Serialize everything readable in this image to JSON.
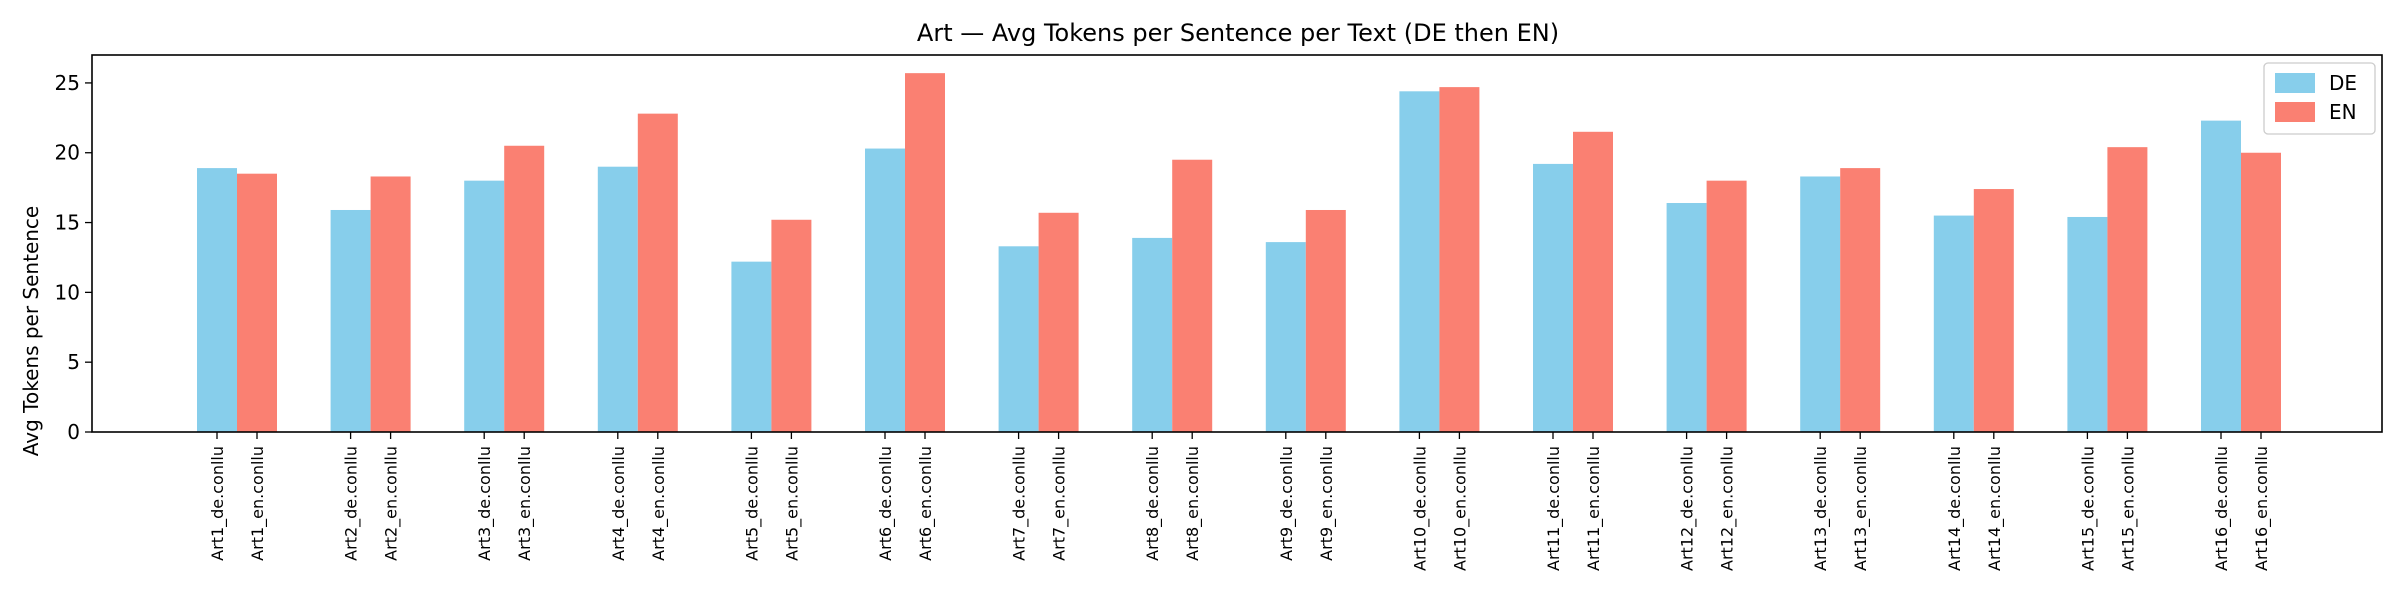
{
  "chart_data": {
    "type": "bar",
    "title": "Art — Avg Tokens per Sentence per Text (DE then EN)",
    "xlabel": "",
    "ylabel": "Avg Tokens per Sentence",
    "ylim": [
      0,
      27
    ],
    "yticks": [
      0,
      5,
      10,
      15,
      20,
      25
    ],
    "grid": false,
    "legend_position": "top-right",
    "categories": [
      "Art1",
      "Art2",
      "Art3",
      "Art4",
      "Art5",
      "Art6",
      "Art7",
      "Art8",
      "Art9",
      "Art10",
      "Art11",
      "Art12",
      "Art13",
      "Art14",
      "Art15",
      "Art16"
    ],
    "series": [
      {
        "name": "DE",
        "color": "#87CEEB",
        "tick_labels": [
          "Art1_de.conllu",
          "Art2_de.conllu",
          "Art3_de.conllu",
          "Art4_de.conllu",
          "Art5_de.conllu",
          "Art6_de.conllu",
          "Art7_de.conllu",
          "Art8_de.conllu",
          "Art9_de.conllu",
          "Art10_de.conllu",
          "Art11_de.conllu",
          "Art12_de.conllu",
          "Art13_de.conllu",
          "Art14_de.conllu",
          "Art15_de.conllu",
          "Art16_de.conllu"
        ],
        "values": [
          18.9,
          15.9,
          18.0,
          19.0,
          12.2,
          20.3,
          13.3,
          13.9,
          13.6,
          24.4,
          19.2,
          16.4,
          18.3,
          15.5,
          15.4,
          22.3
        ]
      },
      {
        "name": "EN",
        "color": "#FA8072",
        "tick_labels": [
          "Art1_en.conllu",
          "Art2_en.conllu",
          "Art3_en.conllu",
          "Art4_en.conllu",
          "Art5_en.conllu",
          "Art6_en.conllu",
          "Art7_en.conllu",
          "Art8_en.conllu",
          "Art9_en.conllu",
          "Art10_en.conllu",
          "Art11_en.conllu",
          "Art12_en.conllu",
          "Art13_en.conllu",
          "Art14_en.conllu",
          "Art15_en.conllu",
          "Art16_en.conllu"
        ],
        "values": [
          18.5,
          18.3,
          20.5,
          22.8,
          15.2,
          25.7,
          15.7,
          19.5,
          15.9,
          24.7,
          21.5,
          18.0,
          18.9,
          17.4,
          20.4,
          20.0
        ]
      }
    ]
  }
}
